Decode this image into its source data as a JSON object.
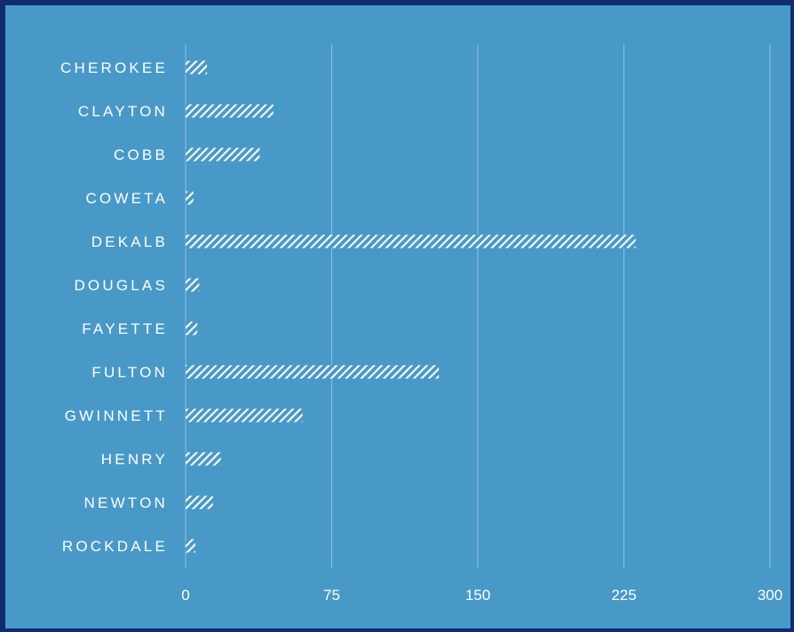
{
  "chart_data": {
    "type": "bar",
    "orientation": "horizontal",
    "categories": [
      "CHEROKEE",
      "CLAYTON",
      "COBB",
      "COWETA",
      "DEKALB",
      "DOUGLAS",
      "FAYETTE",
      "FULTON",
      "GWINNETT",
      "HENRY",
      "NEWTON",
      "ROCKDALE"
    ],
    "values": [
      11,
      45,
      38,
      4,
      231,
      7,
      6,
      130,
      60,
      18,
      14,
      5
    ],
    "xticks": [
      "0",
      "75",
      "150",
      "225",
      "300"
    ],
    "xlim": [
      0,
      300
    ],
    "grid": "vertical",
    "legend": "none",
    "colors": {
      "background": "#4899c8",
      "border": "#0f2d6e",
      "bar_fill": "#ffffff",
      "gridline": "#8fc0de",
      "text": "#ffffff"
    },
    "bar_pattern": "diagonal-hatch"
  }
}
